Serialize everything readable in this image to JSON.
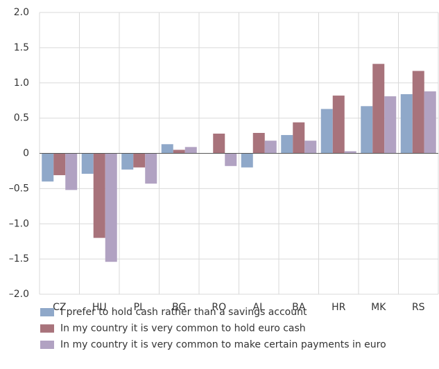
{
  "chart_data": {
    "type": "bar",
    "categories": [
      "CZ",
      "HU",
      "PL",
      "BG",
      "RO",
      "AL",
      "BA",
      "HR",
      "MK",
      "RS"
    ],
    "series": [
      {
        "name": "I prefer to hold cash rather than a savings account",
        "color": "#8fa8c9",
        "values": [
          -0.4,
          -0.29,
          -0.23,
          0.13,
          0,
          -0.2,
          0.26,
          0.63,
          0.67,
          0.84
        ]
      },
      {
        "name": "In my country it is very common to hold euro cash",
        "color": "#a8737b",
        "values": [
          -0.31,
          -1.2,
          -0.2,
          0.05,
          0.28,
          0.29,
          0.44,
          0.82,
          1.27,
          1.17
        ]
      },
      {
        "name": "In my country it is very common to make certain payments in euro",
        "color": "#b1a2c2",
        "values": [
          -0.52,
          -1.54,
          -0.43,
          0.09,
          -0.18,
          0.18,
          0.18,
          0.03,
          0.81,
          0.88
        ]
      }
    ],
    "ylim": [
      -2,
      2
    ],
    "yticks": [
      {
        "value": -2,
        "label": "–2.0"
      },
      {
        "value": -1.5,
        "label": "–1.5"
      },
      {
        "value": -1,
        "label": "–1.0"
      },
      {
        "value": -0.5,
        "label": "–0.5"
      },
      0,
      0.5,
      {
        "value": 1,
        "label": "1.0"
      },
      1.5,
      {
        "value": 2,
        "label": "2.0"
      }
    ],
    "grid": true
  }
}
